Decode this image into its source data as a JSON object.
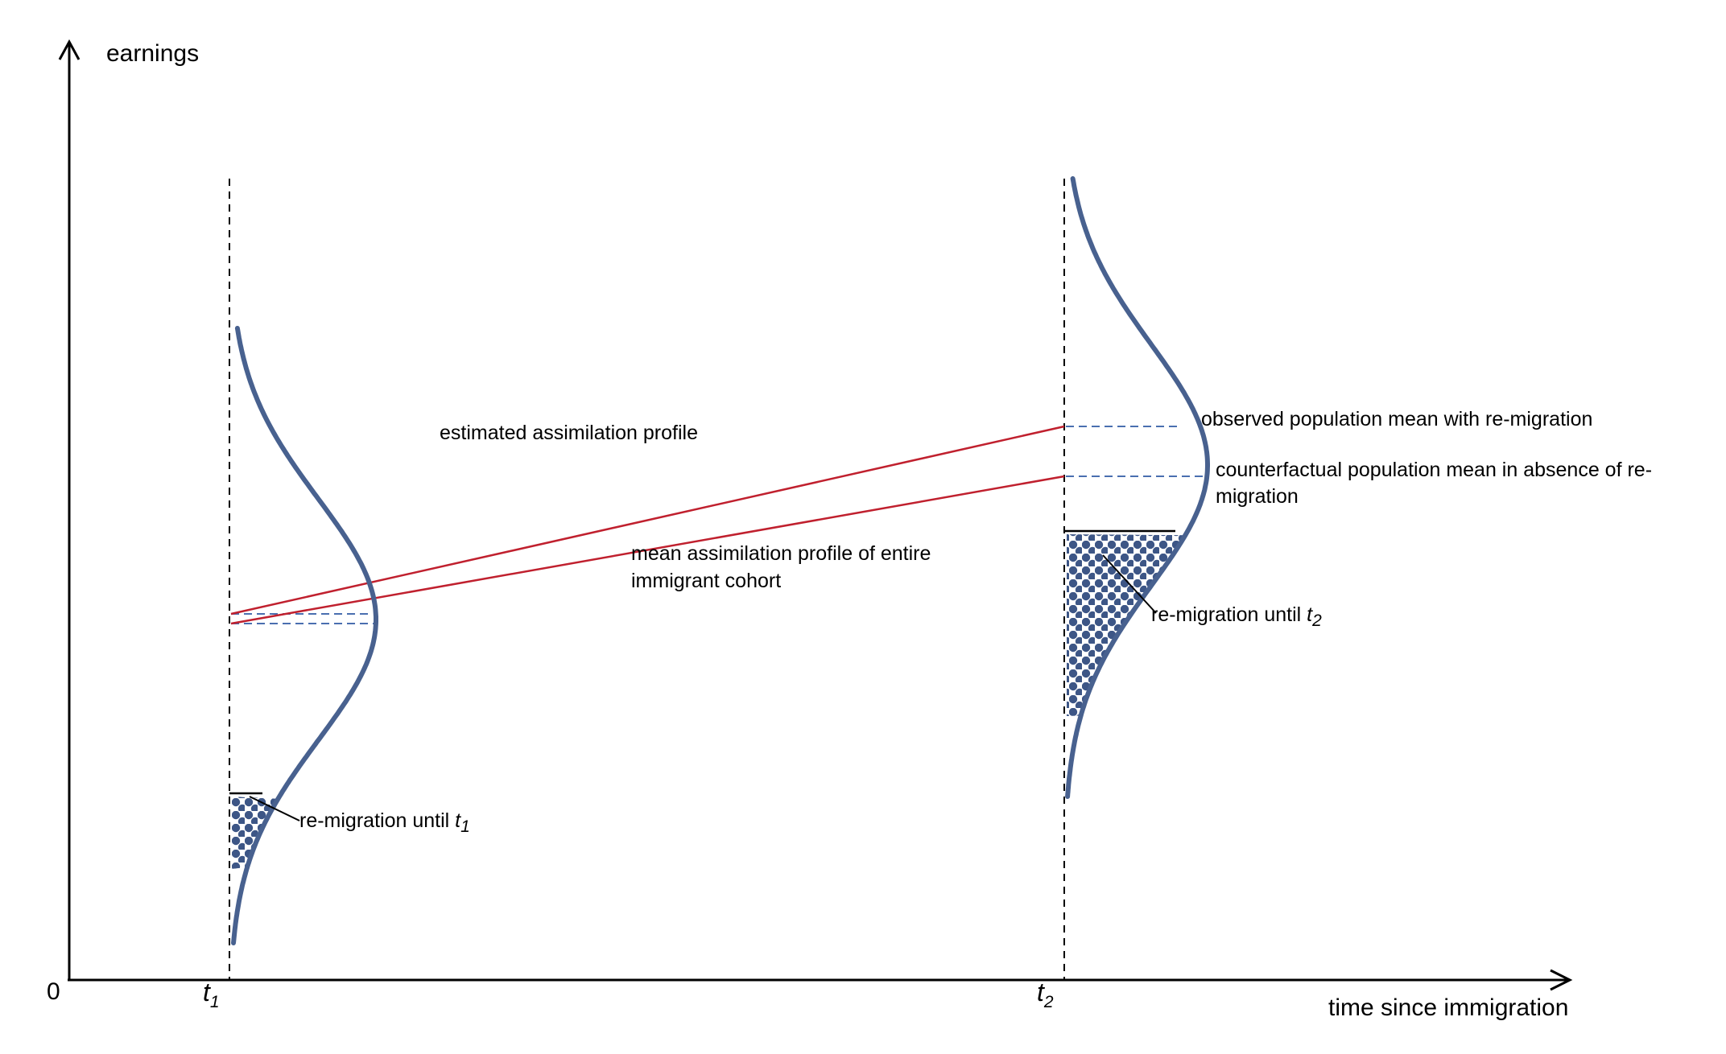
{
  "axes": {
    "y_label": "earnings",
    "x_label": "time since immigration",
    "origin_label": "0",
    "t1_label": "t",
    "t1_sub": "1",
    "t2_label": "t",
    "t2_sub": "2"
  },
  "labels": {
    "estimated_profile": "estimated assimilation profile",
    "mean_profile_line1": "mean assimilation profile of entire",
    "mean_profile_line2": "immigrant cohort",
    "observed_mean": "observed population mean with re-migration",
    "counterfactual_line1": "counterfactual population mean in absence of re-",
    "counterfactual_line2": "migration",
    "remigration_t1_text": "re-migration until ",
    "remigration_t1_var": "t",
    "remigration_t1_sub": "1",
    "remigration_t2_text": "re-migration until ",
    "remigration_t2_var": "t",
    "remigration_t2_sub": "2"
  },
  "colors": {
    "distribution_curve": "#48618F",
    "profile_lines": "#C0202E",
    "mean_dashes": "#4A6FB0",
    "dots": "#3D5686",
    "axes": "#000000"
  }
}
